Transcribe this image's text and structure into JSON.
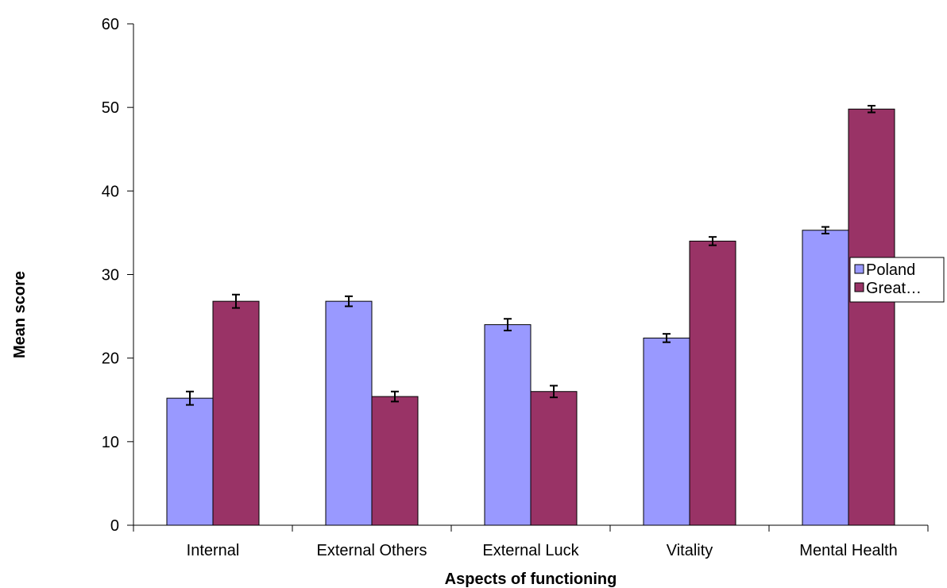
{
  "chart_data": {
    "type": "bar",
    "title": "",
    "xlabel": "Aspects of functioning",
    "ylabel": "Mean score",
    "ylim": [
      0,
      60
    ],
    "yticks": [
      0,
      10,
      20,
      30,
      40,
      50,
      60
    ],
    "grid": false,
    "legend_position": "right",
    "categories": [
      "Internal",
      "External Others",
      "External Luck",
      "Vitality",
      "Mental Health"
    ],
    "series": [
      {
        "name": "Poland",
        "color": "#9999FF",
        "values": [
          15.2,
          26.8,
          24.0,
          22.4,
          35.3
        ],
        "error": [
          0.8,
          0.6,
          0.7,
          0.5,
          0.4
        ]
      },
      {
        "name": "Great…",
        "color": "#993366",
        "values": [
          26.8,
          15.4,
          16.0,
          34.0,
          49.8
        ],
        "error": [
          0.8,
          0.6,
          0.7,
          0.5,
          0.4
        ]
      }
    ]
  }
}
